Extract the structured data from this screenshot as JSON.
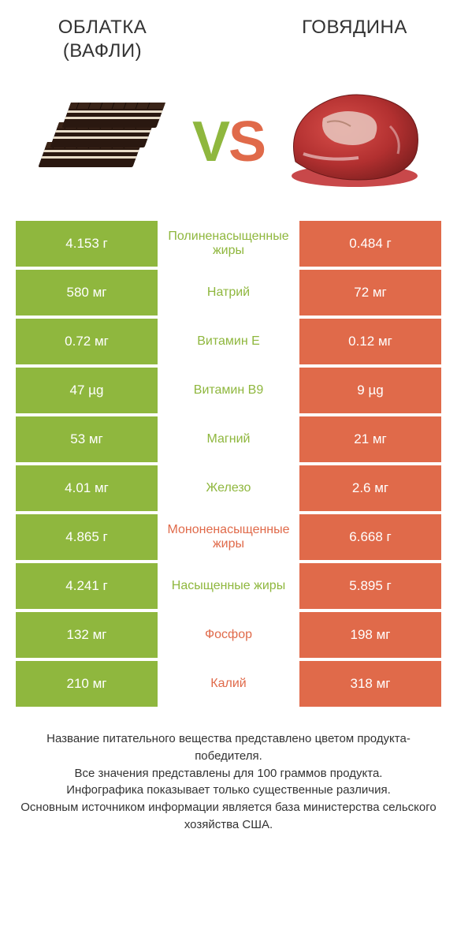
{
  "colors": {
    "green": "#8fb73e",
    "orange": "#e06a4a",
    "text": "#333333",
    "background": "#ffffff"
  },
  "header": {
    "left_title": "ОБЛАТКА (ВАФЛИ)",
    "right_title": "ГОВЯДИНА",
    "vs_v": "V",
    "vs_s": "S"
  },
  "table": {
    "rows": [
      {
        "left": "4.153 г",
        "label": "Полиненасыщенные жиры",
        "right": "0.484 г",
        "winner": "left"
      },
      {
        "left": "580 мг",
        "label": "Натрий",
        "right": "72 мг",
        "winner": "left"
      },
      {
        "left": "0.72 мг",
        "label": "Витамин E",
        "right": "0.12 мг",
        "winner": "left"
      },
      {
        "left": "47 µg",
        "label": "Витамин B9",
        "right": "9 µg",
        "winner": "left"
      },
      {
        "left": "53 мг",
        "label": "Магний",
        "right": "21 мг",
        "winner": "left"
      },
      {
        "left": "4.01 мг",
        "label": "Железо",
        "right": "2.6 мг",
        "winner": "left"
      },
      {
        "left": "4.865 г",
        "label": "Мононенасыщенные жиры",
        "right": "6.668 г",
        "winner": "right"
      },
      {
        "left": "4.241 г",
        "label": "Насыщенные жиры",
        "right": "5.895 г",
        "winner": "left"
      },
      {
        "left": "132 мг",
        "label": "Фосфор",
        "right": "198 мг",
        "winner": "right"
      },
      {
        "left": "210 мг",
        "label": "Калий",
        "right": "318 мг",
        "winner": "right"
      }
    ]
  },
  "footer": {
    "line1": "Название питательного вещества представлено цветом продукта-победителя.",
    "line2": "Все значения представлены для 100 граммов продукта.",
    "line3": "Инфографика показывает только существенные различия.",
    "line4": "Основным источником информации является база министерства сельского хозяйства США."
  }
}
